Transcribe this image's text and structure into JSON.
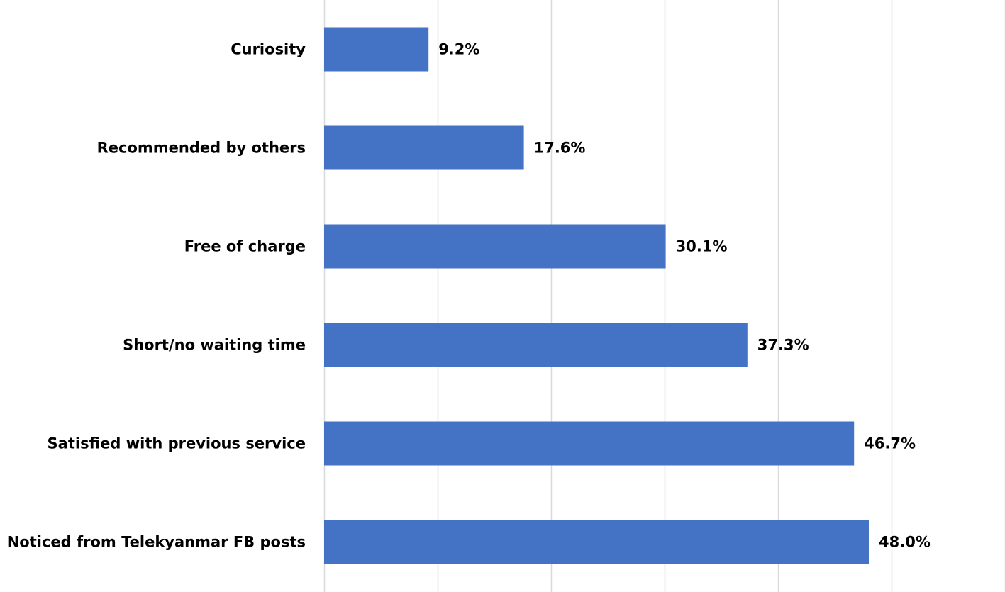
{
  "chart_data": {
    "type": "bar",
    "orientation": "horizontal",
    "categories": [
      "Curiosity",
      "Recommended by others",
      "Free of charge",
      "Short/no waiting time",
      "Satisfied with previous service",
      "Noticed from Telekyanmar FB posts"
    ],
    "values": [
      9.2,
      17.6,
      30.1,
      37.3,
      46.7,
      48.0
    ],
    "value_labels": [
      "9.2%",
      "17.6%",
      "30.1%",
      "37.3%",
      "46.7%",
      "48.0%"
    ],
    "xlim": [
      0,
      60
    ],
    "grid": true,
    "bar_color": "#4472c4",
    "gridline_color": "#d9d9d9"
  }
}
